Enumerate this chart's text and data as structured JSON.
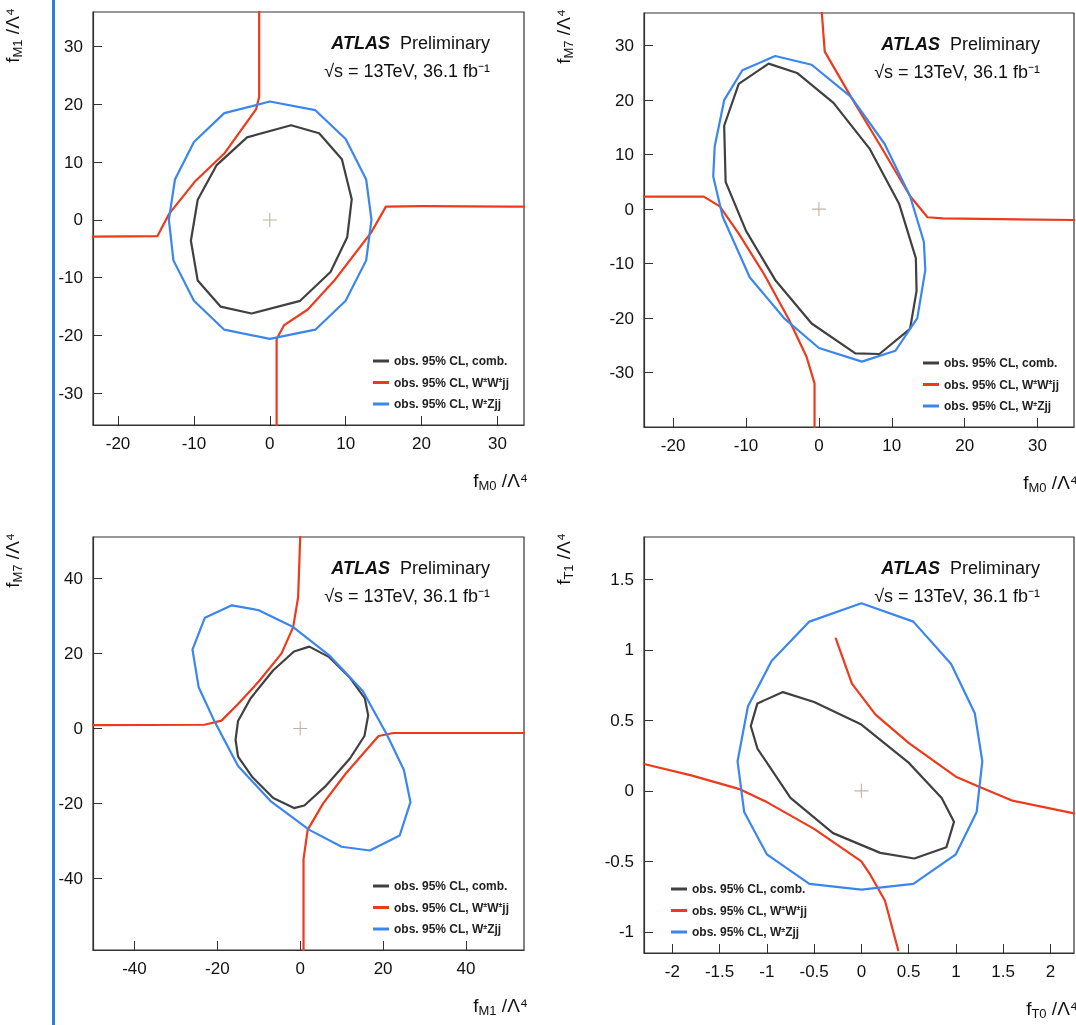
{
  "chart_data": [
    {
      "type": "line",
      "xlabel": "f$_{M0}$ /Λ⁴",
      "ylabel": "f$_{M1}$ /Λ⁴",
      "annotations": [
        "ATLAS",
        "Preliminary",
        "√s = 13TeV, 36.1 fb⁻¹"
      ],
      "xlim": [
        -23.3,
        33.5
      ],
      "ylim": [
        -35.5,
        36
      ],
      "xticks": [
        -20,
        -10,
        0,
        10,
        20,
        30
      ],
      "yticks": [
        -30,
        -20,
        -10,
        0,
        10,
        20,
        30
      ],
      "legend": "bottom right",
      "series": [
        {
          "name": "obs. 95% CL, comb.",
          "color": "#404040",
          "x": [
            -10.4,
            -9.5,
            -7,
            -3,
            2.8,
            6.5,
            9.5,
            10.8,
            10.2,
            8,
            4,
            -2.4,
            -6.5,
            -9.5,
            -10.4
          ],
          "values": [
            -3.6,
            3.5,
            9.5,
            14.3,
            16.4,
            15,
            10.5,
            3.6,
            -3,
            -9,
            -14,
            -16.2,
            -15,
            -10.5,
            -3.6
          ]
        },
        {
          "name": "obs. 95% CL, W$^{±}$W$^{±}$jj",
          "color": "#ee3a1a",
          "x": [
            -23.3,
            -14.8,
            -13.3,
            -9.9,
            -6,
            -1.8,
            -1.4,
            -1.4,
            null,
            0.9,
            0.9,
            1.9,
            5,
            8.5,
            13.4,
            15.3,
            20,
            33.5
          ],
          "values": [
            -2.9,
            -2.8,
            1,
            6.6,
            11.5,
            19.2,
            21.3,
            36,
            null,
            -35.5,
            -20.6,
            -18.2,
            -15.5,
            -10.5,
            -2.1,
            2.3,
            2.4,
            2.3
          ]
        },
        {
          "name": "obs. 95% CL, W$^{±}$Zjj",
          "color": "#3a86f0",
          "x": [
            -13.3,
            -12.5,
            -10,
            -6,
            0,
            6,
            10,
            12.7,
            13.4,
            12.7,
            10,
            6,
            0,
            -6,
            -10,
            -12.7,
            -13.3
          ],
          "values": [
            0,
            7,
            13.5,
            18.5,
            20.5,
            19,
            14,
            7,
            0,
            -7,
            -14,
            -19,
            -20.6,
            -19,
            -14,
            -7,
            0
          ]
        },
        {
          "type": "scatter",
          "marker": "cross",
          "color": "#b0a090",
          "x": [
            0
          ],
          "values": [
            0
          ]
        }
      ]
    },
    {
      "type": "line",
      "xlabel": "f$_{M0}$ /Λ⁴",
      "ylabel": "f$_{M7}$ /Λ⁴",
      "annotations": [
        "ATLAS",
        "Preliminary",
        "√s = 13TeV, 36.1 fb⁻¹"
      ],
      "xlim": [
        -24,
        35
      ],
      "ylim": [
        -40,
        36
      ],
      "xticks": [
        -20,
        -10,
        0,
        10,
        20,
        30
      ],
      "yticks": [
        -30,
        -20,
        -10,
        0,
        10,
        20,
        30
      ],
      "legend": "bottom right",
      "series": [
        {
          "name": "obs. 95% CL, comb.",
          "color": "#404040",
          "x": [
            -6.9,
            -3,
            2,
            7,
            11,
            13.3,
            13.4,
            12.5,
            8.3,
            5,
            -1,
            -6,
            -10,
            -12.8,
            -13,
            -11,
            -6.9
          ],
          "values": [
            26.7,
            25,
            19.5,
            11,
            1,
            -9,
            -15,
            -22,
            -26.6,
            -26.5,
            -21,
            -13,
            -4,
            5,
            15.3,
            23,
            26.7
          ]
        },
        {
          "name": "obs. 95% CL, W$^{±}$W$^{±}$jj",
          "color": "#ee3a1a",
          "x": [
            -24,
            -15.8,
            -13.6,
            -11,
            -7.5,
            -4.1,
            -1.7,
            -0.6,
            -0.6,
            null,
            0.4,
            0.8,
            4.4,
            8.5,
            12.5,
            14.9,
            17,
            35
          ],
          "values": [
            2.3,
            2.3,
            0.5,
            -4.5,
            -12,
            -20.3,
            -27.1,
            -32,
            -40,
            null,
            36,
            28.9,
            20.6,
            11.5,
            2.4,
            -1.5,
            -1.7,
            -2
          ]
        },
        {
          "name": "obs. 95% CL, W$^{±}$Zjj",
          "color": "#3a86f0",
          "x": [
            -6,
            -1,
            4.4,
            9,
            12.5,
            14.4,
            14.6,
            13.5,
            10.5,
            5.9,
            0,
            -4.8,
            -9.5,
            -13.2,
            -14.5,
            -14.3,
            -13,
            -10.5,
            -6
          ],
          "values": [
            28.1,
            26.5,
            20.6,
            12,
            2.4,
            -6,
            -11.2,
            -20,
            -26,
            -28,
            -25.5,
            -20,
            -12.5,
            -1.4,
            6,
            11.5,
            20,
            25.5,
            28.1
          ]
        },
        {
          "type": "scatter",
          "marker": "cross",
          "color": "#b0a090",
          "x": [
            0
          ],
          "values": [
            0
          ]
        }
      ]
    },
    {
      "type": "line",
      "xlabel": "f$_{M1}$ /Λ⁴",
      "ylabel": "f$_{M7}$ /Λ⁴",
      "annotations": [
        "ATLAS",
        "Preliminary",
        "√s = 13TeV, 36.1 fb⁻¹"
      ],
      "xlim": [
        -50,
        54
      ],
      "ylim": [
        -59,
        51
      ],
      "xticks": [
        -40,
        -20,
        0,
        20,
        40
      ],
      "yticks": [
        -40,
        -20,
        0,
        20,
        40
      ],
      "legend": "bottom right",
      "series": [
        {
          "name": "obs. 95% CL, comb.",
          "color": "#404040",
          "x": [
            2.2,
            7,
            12,
            15.6,
            16.4,
            15.5,
            12,
            6,
            1,
            -1.5,
            -6.5,
            -11.5,
            -15,
            -15.6,
            -15,
            -12,
            -6.5,
            -1.5,
            2.2
          ],
          "values": [
            21.8,
            19,
            13.5,
            8,
            3.5,
            -2,
            -8,
            -15.5,
            -20.5,
            -21.2,
            -18.5,
            -13,
            -7.5,
            -3,
            2,
            8,
            15.5,
            20.5,
            21.8
          ]
        },
        {
          "name": "obs. 95% CL, W$^{±}$W$^{±}$jj",
          "color": "#ee3a1a",
          "x": [
            -50,
            -23.1,
            -19,
            -15,
            -10,
            -4.5,
            -1.7,
            -0.5,
            0,
            null,
            0.8,
            0.8,
            1.8,
            5.5,
            11,
            18.9,
            22.5,
            54
          ],
          "values": [
            0.9,
            1,
            2.1,
            6.5,
            12.5,
            20,
            27,
            35,
            51,
            null,
            -59,
            -34.8,
            -27,
            -20,
            -12,
            -2,
            -1.2,
            -1.2
          ]
        },
        {
          "name": "obs. 95% CL, W$^{±}$Zjj",
          "color": "#3a86f0",
          "x": [
            -16.5,
            -10,
            -1.7,
            7,
            15.1,
            20.9,
            25,
            26.6,
            24,
            16.8,
            10,
            2.2,
            -7,
            -15,
            -20.6,
            -24.5,
            -26,
            -23,
            -16.5
          ],
          "values": [
            32.8,
            31.5,
            27,
            19.5,
            10,
            -1.6,
            -11,
            -19.6,
            -28.5,
            -32.5,
            -31.5,
            -27,
            -19.5,
            -10,
            1.7,
            11,
            21,
            29.5,
            32.8
          ]
        },
        {
          "type": "scatter",
          "marker": "cross",
          "color": "#b0a090",
          "x": [
            0
          ],
          "values": [
            0
          ]
        }
      ]
    },
    {
      "type": "line",
      "xlabel": "f$_{T0}$ /Λ⁴",
      "ylabel": "f$_{T1}$ /Λ⁴",
      "annotations": [
        "ATLAS",
        "Preliminary",
        "√s = 13TeV, 36.1 fb⁻¹"
      ],
      "xlim": [
        -2.3,
        2.25
      ],
      "ylim": [
        -1.15,
        1.8
      ],
      "xticks": [
        -2,
        -1.5,
        -1,
        -0.5,
        0,
        0.5,
        1,
        1.5,
        2
      ],
      "yticks": [
        -1,
        -0.5,
        0,
        0.5,
        1,
        1.5
      ],
      "legend": "bottom left",
      "series": [
        {
          "name": "obs. 95% CL, comb.",
          "color": "#404040",
          "x": [
            -0.83,
            -0.5,
            0,
            0.5,
            0.85,
            0.98,
            0.9,
            0.56,
            0.2,
            -0.3,
            -0.75,
            -1.1,
            -1.17,
            -1.1,
            -0.83
          ],
          "values": [
            0.7,
            0.63,
            0.47,
            0.2,
            -0.05,
            -0.22,
            -0.4,
            -0.48,
            -0.44,
            -0.3,
            -0.05,
            0.3,
            0.46,
            0.62,
            0.7
          ]
        },
        {
          "name": "obs. 95% CL, W$^{±}$W$^{±}$jj",
          "color": "#ee3a1a",
          "x": [
            -2.3,
            -1.8,
            -1.28,
            -1,
            -0.5,
            0,
            0.09,
            0.25,
            0.39,
            null,
            -0.27,
            -0.1,
            0.15,
            0.5,
            1,
            1.24,
            1.6,
            2.25
          ],
          "values": [
            0.19,
            0.11,
            0.01,
            -0.08,
            -0.27,
            -0.5,
            -0.59,
            -0.78,
            -1.13,
            null,
            1.08,
            0.76,
            0.54,
            0.34,
            0.1,
            0.03,
            -0.07,
            -0.16
          ]
        },
        {
          "name": "obs. 95% CL, W$^{±}$Zjj",
          "color": "#3a86f0",
          "x": [
            0,
            0.55,
            0.95,
            1.2,
            1.28,
            1.22,
            1,
            0.55,
            0,
            -0.55,
            -1,
            -1.24,
            -1.31,
            -1.2,
            -0.95,
            -0.55,
            0
          ],
          "values": [
            1.33,
            1.2,
            0.9,
            0.55,
            0.21,
            -0.15,
            -0.45,
            -0.66,
            -0.7,
            -0.66,
            -0.45,
            -0.15,
            0.21,
            0.6,
            0.92,
            1.2,
            1.33
          ]
        },
        {
          "type": "scatter",
          "marker": "cross",
          "color": "#b0a090",
          "x": [
            0
          ],
          "values": [
            0
          ]
        }
      ]
    }
  ]
}
